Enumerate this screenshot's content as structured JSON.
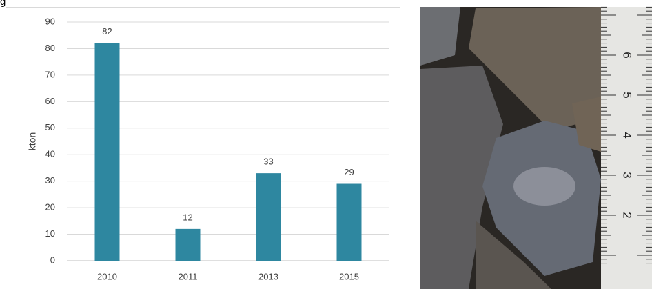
{
  "figure_label": "g",
  "chart_data": {
    "type": "bar",
    "y_label": "kton",
    "categories": [
      "2010",
      "2011",
      "2013",
      "2015"
    ],
    "values": [
      82,
      12,
      33,
      29
    ],
    "color": "#2e87a0",
    "ylim": [
      0,
      90
    ],
    "yticks": [
      0,
      10,
      20,
      30,
      40,
      50,
      60,
      70,
      80,
      90
    ],
    "grid": true,
    "data_labels": true
  },
  "photo": {
    "ruler_labels": [
      "2",
      "3",
      "4",
      "5",
      "6"
    ]
  }
}
